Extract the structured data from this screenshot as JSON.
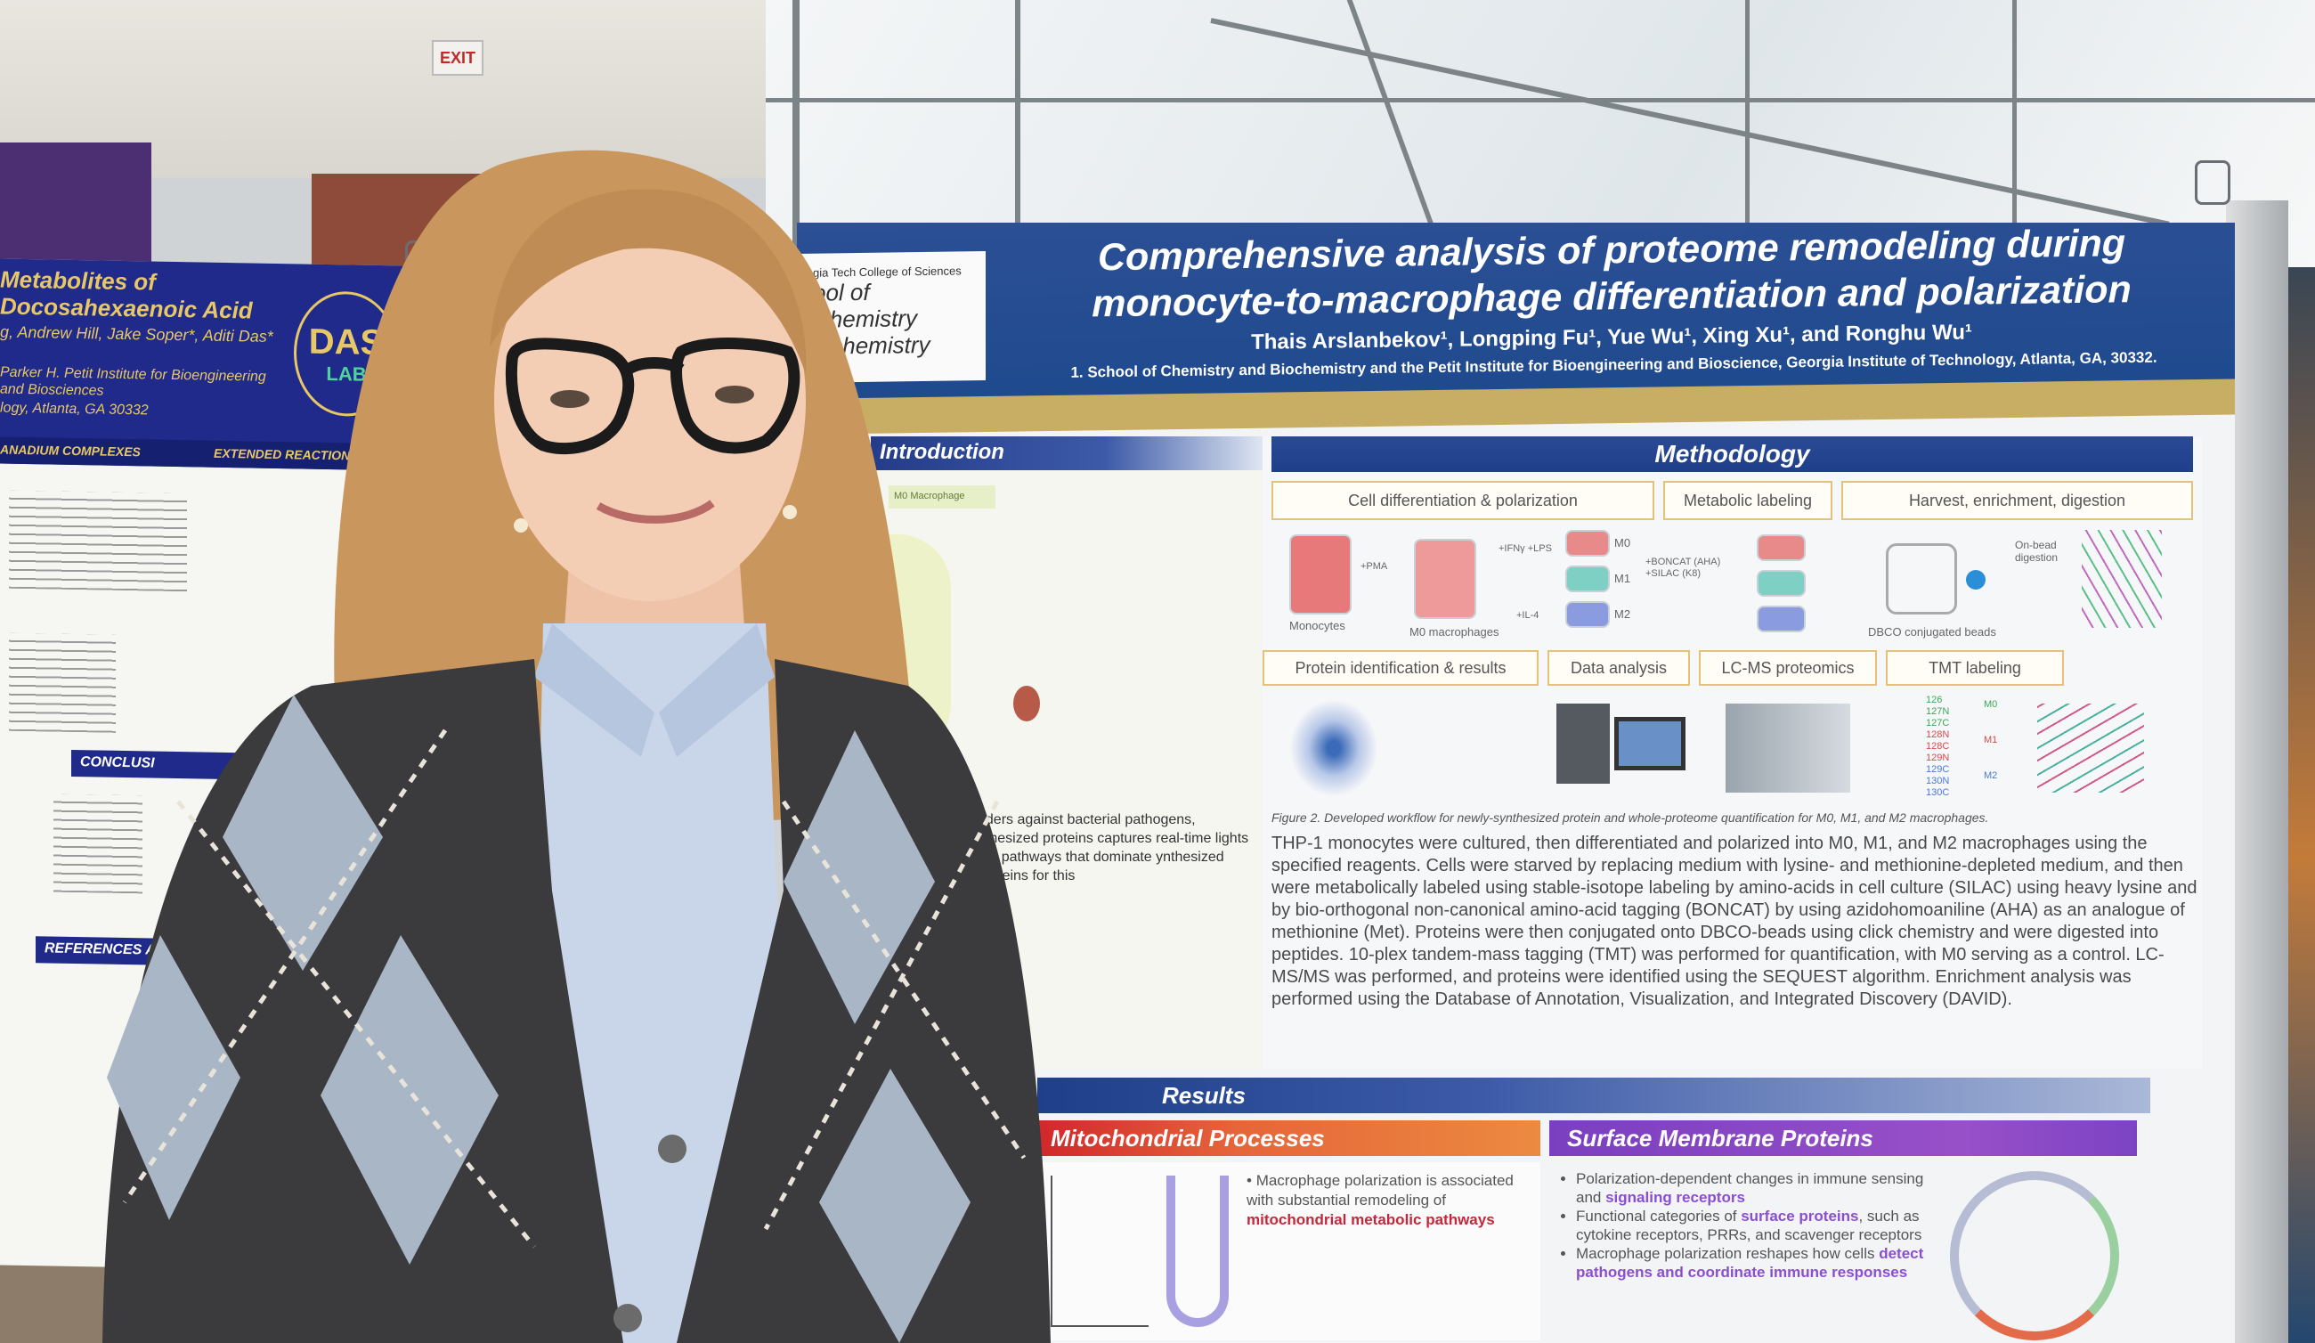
{
  "scene": {
    "exit_sign": "EXIT"
  },
  "left_poster": {
    "title": "Metabolites of Docosahexaenoic Acid",
    "authors": "g, Andrew Hill, Jake Soper*, Aditi Das*",
    "affiliation_1": "Parker H. Petit Institute for Bioengineering and Biosciences",
    "affiliation_2": "logy, Atlanta, GA 30332",
    "logo_letters": "DAS",
    "logo_sub": "LAB",
    "subheader_left": "ANADIUM COMPLEXES",
    "subheader_right": "EXTENDED REACTION TIME",
    "section_conclusions": "CONCLUSI",
    "section_references": "REFERENCES AND"
  },
  "main_poster": {
    "school_line1": "gia Tech College of Sciences",
    "school_line2": "ool of Chemistry",
    "school_line3": "iochemistry",
    "title_line1": "Comprehensive analysis of proteome remodeling during",
    "title_line2": "monocyte-to-macrophage differentiation and polarization",
    "authors": "Thais Arslanbekov¹, Longping Fu¹, Yue Wu¹, Xing Xu¹, and Ronghu Wu¹",
    "affiliation": "1. School of Chemistry and Biochemistry and the Petit Institute for Bioengineering and Bioscience, Georgia Institute of Technology, Atlanta, GA, 30332.",
    "introduction": {
      "heading": "Introduction",
      "label": "M0 Macrophage",
      "text": "nders against bacterial pathogens, nthesized proteins captures real-time lights the pathways that dominate ynthesized proteins for this"
    },
    "methodology": {
      "heading": "Methodology",
      "steps_top": [
        "Cell differentiation & polarization",
        "Metabolic labeling",
        "Harvest, enrichment, digestion"
      ],
      "steps_bottom": [
        "Protein identification & results",
        "Data analysis",
        "LC-MS proteomics",
        "TMT labeling"
      ],
      "flask_labels": [
        "Monocytes",
        "M0 macrophages",
        "M0",
        "M1",
        "M2"
      ],
      "reagents": [
        "+PMA",
        "+IFNγ +LPS",
        "+IL-4",
        "+BONCAT (AHA) +SILAC (K8)",
        "On-bead digestion"
      ],
      "bead_label": "DBCO conjugated beads",
      "tmt_channels": [
        "126",
        "127N",
        "127C",
        "128N",
        "128C",
        "129N",
        "129C",
        "130N",
        "130C"
      ],
      "tmt_groups": [
        "M0",
        "M1",
        "M2"
      ],
      "figure_caption": "Figure 2. Developed workflow for newly-synthesized protein and whole-proteome quantification for M0, M1, and M2 macrophages.",
      "text": "THP-1 monocytes were cultured, then differentiated and polarized into M0, M1, and M2 macrophages using the specified reagents. Cells were starved by replacing medium with lysine- and methionine-depleted medium, and then were metabolically labeled using stable-isotope labeling by amino-acids in cell culture (SILAC) using heavy lysine and by bio-orthogonal non-canonical amino-acid tagging (BONCAT) by using azidohomoaniline (AHA) as an analogue of methionine (Met). Proteins were then conjugated onto DBCO-beads using click chemistry and were digested into peptides. 10-plex tandem-mass tagging (TMT) was performed for quantification, with M0 serving as a control. LC-MS/MS was performed, and proteins were identified using the SEQUEST algorithm. Enrichment analysis was performed using the Database of Annotation, Visualization, and Integrated Discovery (DAVID)."
    },
    "results": {
      "heading": "Results",
      "mito_heading": "Mitochondrial Processes",
      "mito_text_1": "Macrophage polarization is associated with substantial remodeling of ",
      "mito_text_hl": "mitochondrial metabolic pathways",
      "surface_heading": "Surface Membrane Proteins",
      "surface_bullets": [
        {
          "text": "Polarization-dependent changes in immune sensing and ",
          "hl": "signaling receptors"
        },
        {
          "text": "Functional categories of ",
          "hl": "surface proteins",
          "tail": ", such as cytokine receptors, PRRs, and scavenger receptors"
        },
        {
          "text": "Macrophage polarization reshapes how cells ",
          "hl": "detect pathogens and coordinate immune responses"
        }
      ]
    }
  },
  "colors": {
    "poster_blue": "#1f4a8e",
    "poster_gold": "#c8ad64",
    "left_poster_blue": "#1f2a8a",
    "results_orange": "#e6653a",
    "results_purple": "#9850c8",
    "cardigan_dark": "#3b3b3d",
    "cardigan_argyle": "#a9b6c6",
    "shirt_blue": "#c9d6ea",
    "hair": "#c9975e"
  }
}
